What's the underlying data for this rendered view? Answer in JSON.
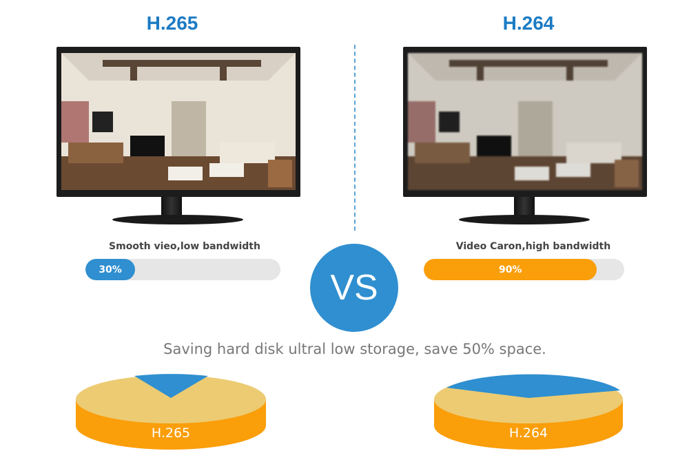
{
  "left": {
    "title": "H.265",
    "caption": "Smooth vieo,low bandwidth",
    "progress_label": "30%",
    "progress_percent": 30,
    "bar_color": "#2f8fd0",
    "pie_label": "H.265"
  },
  "right": {
    "title": "H.264",
    "caption": "Video Caron,high bandwidth",
    "progress_label": "90%",
    "progress_percent": 90,
    "bar_color": "#fa9e0a",
    "pie_label": "H.264"
  },
  "vs_label": "VS",
  "tagline": "Saving hard disk ultral low storage, save 50% space.",
  "colors": {
    "blue": "#2f8fd0",
    "orange": "#fa9e0a",
    "pie_top": "#eccb73",
    "track": "#e6e6e6"
  }
}
